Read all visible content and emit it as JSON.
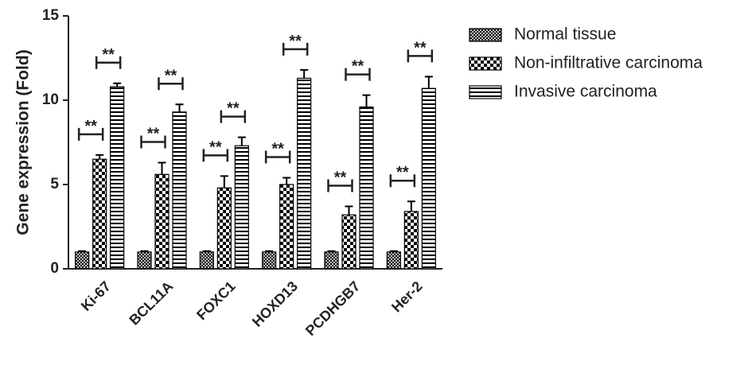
{
  "chart_data": {
    "type": "bar",
    "y_label": "Gene expression (Fold)",
    "categories": [
      "Ki-67",
      "BCL11A",
      "FOXC1",
      "HOXD13",
      "PCDHGB7",
      "Her-2"
    ],
    "series": [
      {
        "name": "Normal tissue",
        "color": "#000000",
        "pattern": "crosshatch",
        "values": [
          1.0,
          1.0,
          1.0,
          1.0,
          1.0,
          1.0
        ],
        "errors": [
          0.05,
          0.05,
          0.05,
          0.05,
          0.05,
          0.05
        ]
      },
      {
        "name": "Non-infiltrative carcinoma",
        "color": "#000000",
        "pattern": "checker",
        "values": [
          6.5,
          5.6,
          4.8,
          5.0,
          3.2,
          3.4
        ],
        "errors": [
          0.25,
          0.7,
          0.7,
          0.4,
          0.5,
          0.6
        ]
      },
      {
        "name": "Invasive carcinoma",
        "color": "#000000",
        "pattern": "hstripes",
        "values": [
          10.8,
          9.3,
          7.3,
          11.3,
          9.6,
          10.7
        ],
        "errors": [
          0.2,
          0.45,
          0.5,
          0.5,
          0.7,
          0.7
        ]
      }
    ],
    "significance": [
      [
        "**",
        "**"
      ],
      [
        "**",
        "**"
      ],
      [
        "**",
        "**"
      ],
      [
        "**",
        "**"
      ],
      [
        "**",
        "**"
      ],
      [
        "**",
        "**"
      ]
    ],
    "ylim": [
      0,
      15
    ],
    "yticks": [
      0,
      5,
      10,
      15
    ],
    "legend": "right"
  }
}
